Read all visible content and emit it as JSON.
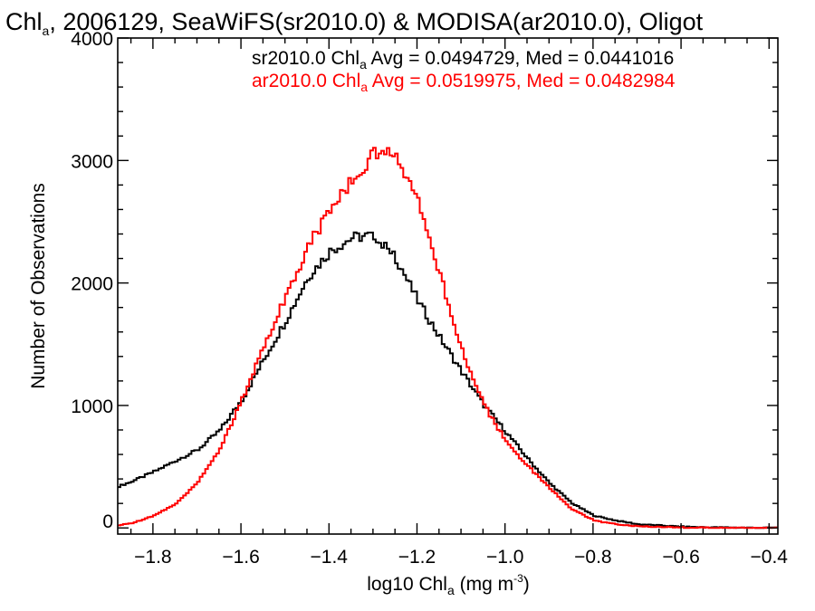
{
  "chart_data": {
    "type": "line",
    "title": {
      "prefix": "Chl",
      "subscript": "a",
      "rest": ", 2006129, SeaWiFS(sr2010.0) & MODISA(ar2010.0), Oligot"
    },
    "xlabel": {
      "prefix": "log10 Chl",
      "subscript": "a",
      "middle": " (mg m",
      "superscript": "-3",
      "suffix": ")"
    },
    "ylabel": "Number of Observations",
    "xlim": [
      -1.88,
      -0.38
    ],
    "ylim": [
      -50,
      4000
    ],
    "x_ticks": [
      -1.8,
      -1.6,
      -1.4,
      -1.2,
      -1.0,
      -0.8,
      -0.6,
      -0.4
    ],
    "x_tick_labels": [
      "−1.8",
      "−1.6",
      "−1.4",
      "−1.2",
      "−1.0",
      "−0.8",
      "−0.6",
      "−0.4"
    ],
    "y_ticks": [
      0,
      1000,
      2000,
      3000,
      4000
    ],
    "y_tick_labels": [
      "0",
      "1000",
      "2000",
      "3000",
      "4000"
    ],
    "step_style": "histogram",
    "x": [
      -1.88,
      -1.85,
      -1.8,
      -1.75,
      -1.7,
      -1.65,
      -1.6,
      -1.55,
      -1.5,
      -1.45,
      -1.4,
      -1.35,
      -1.3,
      -1.275,
      -1.25,
      -1.2,
      -1.15,
      -1.1,
      -1.05,
      -1.0,
      -0.95,
      -0.9,
      -0.85,
      -0.8,
      -0.75,
      -0.7,
      -0.65,
      -0.6,
      -0.55,
      -0.5,
      -0.45,
      -0.4,
      -0.38
    ],
    "series": [
      {
        "name": "sr2010.0",
        "color": "#000000",
        "legend": {
          "prefix": "sr2010.0 Chl",
          "subscript": "a",
          "suffix": " Avg = 0.0494729, Med = 0.0441016"
        },
        "values": [
          340,
          380,
          460,
          550,
          640,
          800,
          1050,
          1380,
          1700,
          2050,
          2260,
          2370,
          2390,
          2300,
          2200,
          1850,
          1550,
          1270,
          1000,
          780,
          560,
          360,
          200,
          100,
          60,
          30,
          20,
          10,
          6,
          4,
          2,
          1,
          1
        ]
      },
      {
        "name": "ar2010.0",
        "color": "#ff0000",
        "legend": {
          "prefix": "ar2010.0 Chl",
          "subscript": "a",
          "suffix": " Avg = 0.0519975, Med = 0.0482984"
        },
        "values": [
          20,
          40,
          100,
          200,
          380,
          650,
          1050,
          1500,
          1900,
          2300,
          2600,
          2850,
          3050,
          3100,
          3000,
          2650,
          2050,
          1450,
          1000,
          700,
          500,
          320,
          150,
          60,
          30,
          15,
          8,
          4,
          2,
          1,
          1,
          0,
          0
        ]
      }
    ]
  }
}
